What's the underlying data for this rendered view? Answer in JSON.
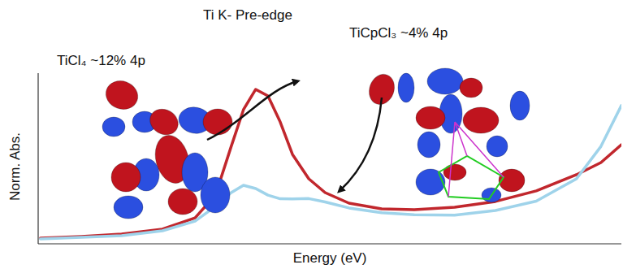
{
  "chart_data": {
    "type": "line",
    "x_label": "Energy (eV)",
    "y_label": "Norm. Abs.",
    "annotations": [
      "Ti K- Pre-edge",
      "TiCl₄ ~12% 4p",
      "TiCpCl₃ ~4% 4p"
    ],
    "x": [
      0.4,
      7.4,
      14.3,
      21.3,
      26.9,
      30.4,
      33.1,
      35.2,
      37.3,
      39.4,
      41.5,
      43.6,
      46.4,
      49.2,
      53.3,
      58.9,
      64.5,
      71.4,
      78.4,
      85.4,
      92.3,
      96.5,
      100
    ],
    "series": [
      {
        "color": "#c1272d",
        "values": [
          0.033,
          0.043,
          0.057,
          0.086,
          0.152,
          0.286,
          0.571,
          0.786,
          0.905,
          0.867,
          0.714,
          0.524,
          0.381,
          0.3,
          0.238,
          0.205,
          0.2,
          0.214,
          0.248,
          0.31,
          0.405,
          0.476,
          0.581
        ]
      },
      {
        "color": "#9fd3ea",
        "values": [
          0.029,
          0.038,
          0.048,
          0.076,
          0.133,
          0.22,
          0.3,
          0.343,
          0.324,
          0.285,
          0.264,
          0.263,
          0.265,
          0.245,
          0.21,
          0.182,
          0.17,
          0.168,
          0.195,
          0.25,
          0.381,
          0.571,
          0.81
        ]
      }
    ],
    "xlim": [
      0,
      100
    ],
    "ylim": [
      0,
      1
    ],
    "tick_labels": false,
    "grid": false
  }
}
